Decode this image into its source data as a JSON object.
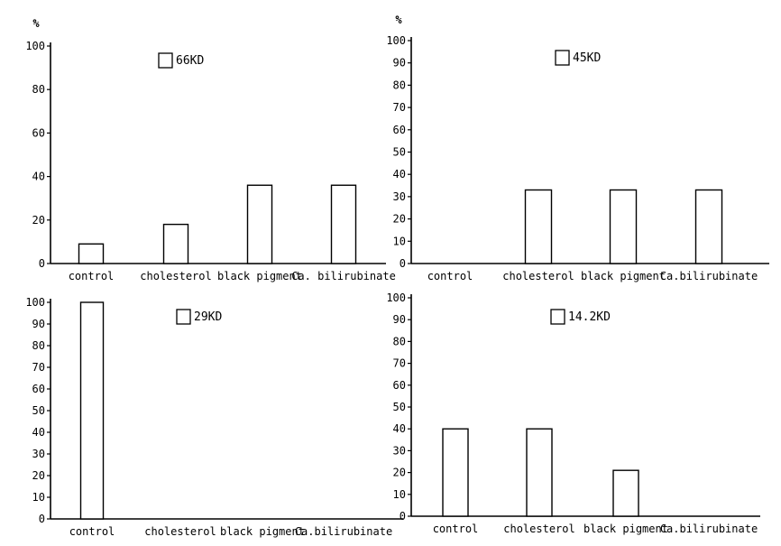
{
  "chart_data": [
    {
      "type": "bar",
      "legend": "66KD",
      "ylabel": "%",
      "categories": [
        "control",
        "cholesterol",
        "black pigment",
        "Ca. bilirubinate"
      ],
      "values": [
        9,
        18,
        36,
        36
      ],
      "ylim": [
        0,
        100
      ],
      "yticks": [
        0,
        20,
        40,
        60,
        80,
        100
      ]
    },
    {
      "type": "bar",
      "legend": "45KD",
      "ylabel": "%",
      "categories": [
        "control",
        "cholesterol",
        "black pigment",
        "Ca.bilirubinate"
      ],
      "values": [
        0,
        33,
        33,
        33
      ],
      "ylim": [
        0,
        100
      ],
      "yticks": [
        0,
        10,
        20,
        30,
        40,
        50,
        60,
        70,
        80,
        90,
        100
      ]
    },
    {
      "type": "bar",
      "legend": "29KD",
      "ylabel": "",
      "categories": [
        "control",
        "cholesterol",
        "black pigment",
        "Ca.bilirubinate"
      ],
      "values": [
        100,
        0,
        0,
        0
      ],
      "ylim": [
        0,
        100
      ],
      "yticks": [
        0,
        10,
        20,
        30,
        40,
        50,
        60,
        70,
        80,
        90,
        100
      ]
    },
    {
      "type": "bar",
      "legend": "14.2KD",
      "ylabel": "",
      "categories": [
        "control",
        "cholesterol",
        "black pigment",
        "Ca.bilirubinate"
      ],
      "values": [
        40,
        40,
        21,
        0
      ],
      "ylim": [
        0,
        100
      ],
      "yticks": [
        0,
        10,
        20,
        30,
        40,
        50,
        60,
        70,
        80,
        90,
        100
      ]
    }
  ]
}
